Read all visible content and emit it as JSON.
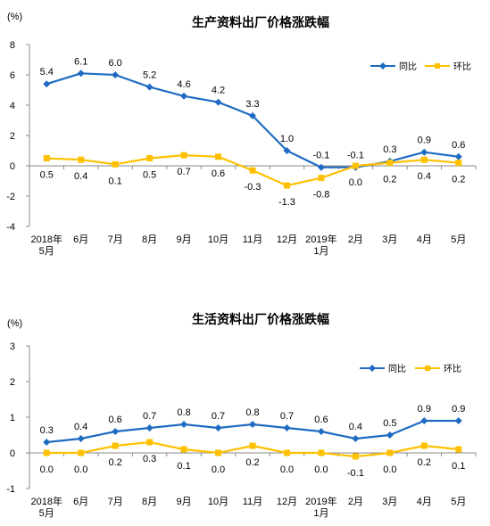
{
  "chart_data": [
    {
      "type": "line",
      "title": "生产资料出厂价格涨跌幅",
      "ylabel": "(%)",
      "ylim": [
        -4,
        8
      ],
      "yticks": [
        8,
        6,
        4,
        2,
        0,
        -2,
        -4
      ],
      "categories": [
        [
          "2018年",
          "5月"
        ],
        [
          "6月"
        ],
        [
          "7月"
        ],
        [
          "8月"
        ],
        [
          "9月"
        ],
        [
          "10月"
        ],
        [
          "11月"
        ],
        [
          "12月"
        ],
        [
          "2019年",
          "1月"
        ],
        [
          "2月"
        ],
        [
          "3月"
        ],
        [
          "4月"
        ],
        [
          "5月"
        ]
      ],
      "series": [
        {
          "name": "同比",
          "color": "#1F6BC2",
          "values": [
            5.4,
            6.1,
            6.0,
            5.2,
            4.6,
            4.2,
            3.3,
            1.0,
            -0.1,
            -0.1,
            0.3,
            0.9,
            0.6
          ],
          "labels": [
            "5.4",
            "6.1",
            "6.0",
            "5.2",
            "4.6",
            "4.2",
            "3.3",
            "1.0",
            "-0.1",
            "-0.1",
            "0.3",
            "0.9",
            "0.6"
          ],
          "label_pos": [
            "above",
            "above",
            "above",
            "above",
            "above",
            "above",
            "above",
            "above",
            "above",
            "above",
            "above",
            "above",
            "above"
          ]
        },
        {
          "name": "环比",
          "color": "#FFC000",
          "values": [
            0.5,
            0.4,
            0.1,
            0.5,
            0.7,
            0.6,
            -0.3,
            -1.3,
            -0.8,
            0.0,
            0.2,
            0.4,
            0.2
          ],
          "labels": [
            "0.5",
            "0.4",
            "0.1",
            "0.5",
            "0.7",
            "0.6",
            "-0.3",
            "-1.3",
            "-0.8",
            "0.0",
            "0.2",
            "0.4",
            "0.2"
          ],
          "label_pos": [
            "below",
            "below",
            "below",
            "below",
            "below",
            "below",
            "below",
            "below",
            "below",
            "below",
            "below",
            "below",
            "below"
          ]
        }
      ],
      "legend": "top-right",
      "grid": false
    },
    {
      "type": "line",
      "title": "生活资料出厂价格涨跌幅",
      "ylabel": "(%)",
      "ylim": [
        -1,
        3
      ],
      "yticks": [
        3,
        2,
        1,
        0,
        -1
      ],
      "categories": [
        [
          "2018年",
          "5月"
        ],
        [
          "6月"
        ],
        [
          "7月"
        ],
        [
          "8月"
        ],
        [
          "9月"
        ],
        [
          "10月"
        ],
        [
          "11月"
        ],
        [
          "12月"
        ],
        [
          "2019年",
          "1月"
        ],
        [
          "2月"
        ],
        [
          "3月"
        ],
        [
          "4月"
        ],
        [
          "5月"
        ]
      ],
      "series": [
        {
          "name": "同比",
          "color": "#1F6BC2",
          "values": [
            0.3,
            0.4,
            0.6,
            0.7,
            0.8,
            0.7,
            0.8,
            0.7,
            0.6,
            0.4,
            0.5,
            0.9,
            0.9
          ],
          "labels": [
            "0.3",
            "0.4",
            "0.6",
            "0.7",
            "0.8",
            "0.7",
            "0.8",
            "0.7",
            "0.6",
            "0.4",
            "0.5",
            "0.9",
            "0.9"
          ],
          "label_pos": [
            "above",
            "above",
            "above",
            "above",
            "above",
            "above",
            "above",
            "above",
            "above",
            "above",
            "above",
            "above",
            "above"
          ]
        },
        {
          "name": "环比",
          "color": "#FFC000",
          "values": [
            0.0,
            0.0,
            0.2,
            0.3,
            0.1,
            0.0,
            0.2,
            0.0,
            0.0,
            -0.1,
            0.0,
            0.2,
            0.1
          ],
          "labels": [
            "0.0",
            "0.0",
            "0.2",
            "0.3",
            "0.1",
            "0.0",
            "0.2",
            "0.0",
            "0.0",
            "-0.1",
            "0.0",
            "0.2",
            "0.1"
          ],
          "label_pos": [
            "below",
            "below",
            "below",
            "below",
            "below",
            "below",
            "below",
            "below",
            "below",
            "below",
            "below",
            "below",
            "below"
          ]
        }
      ],
      "legend": "top-right",
      "grid": false
    }
  ]
}
